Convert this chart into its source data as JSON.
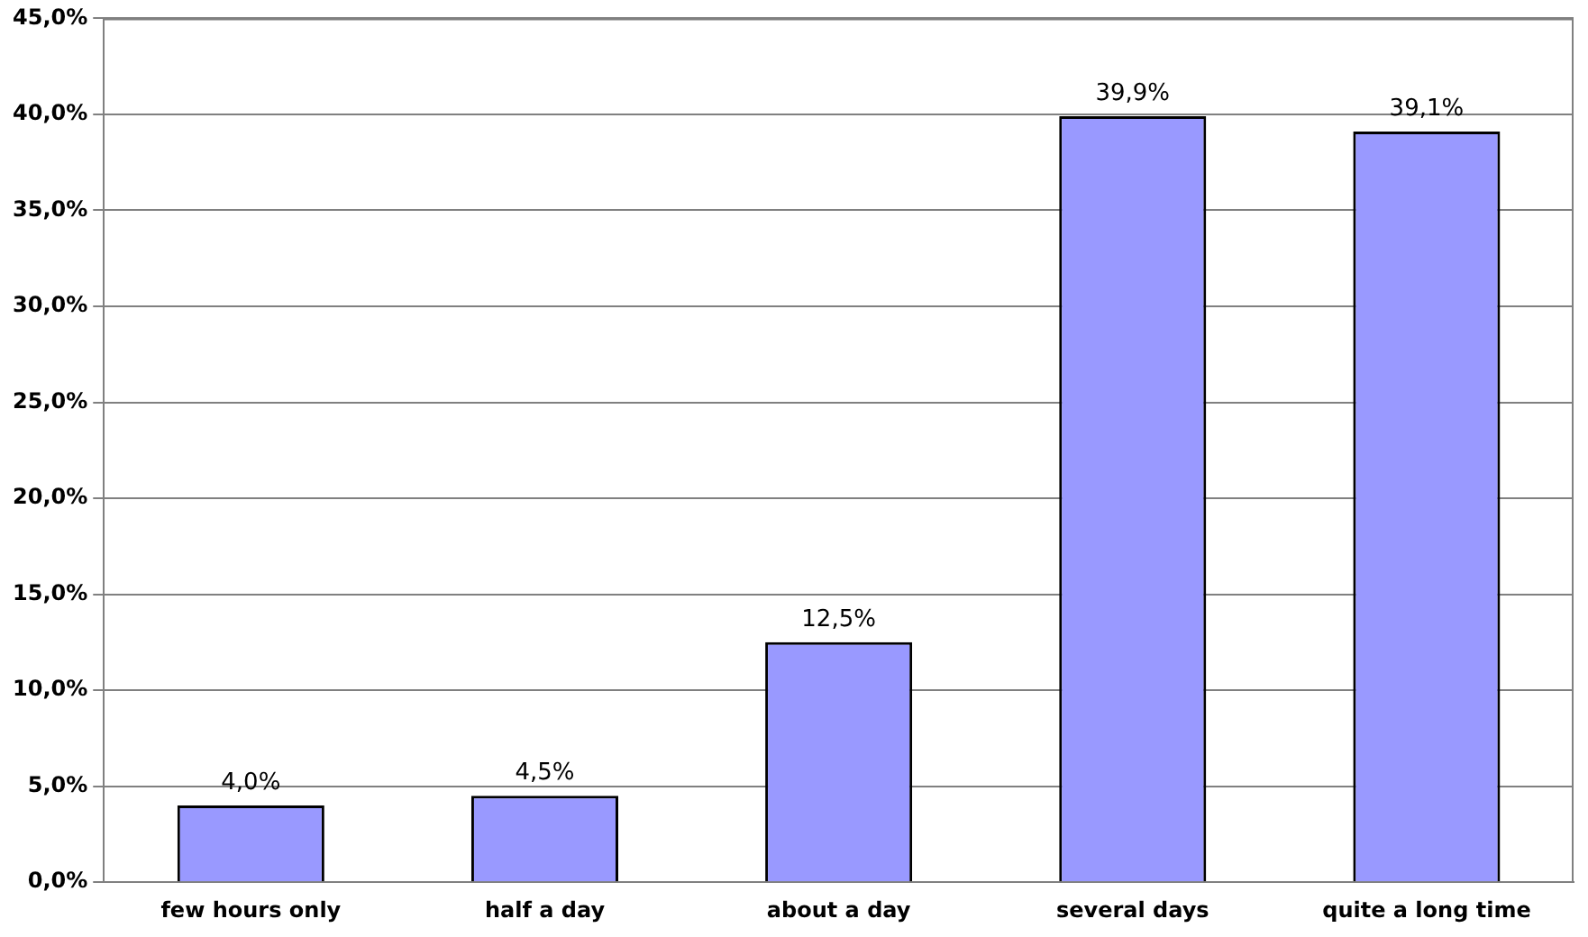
{
  "chart_data": {
    "type": "bar",
    "categories": [
      "few hours only",
      "half a day",
      "about a day",
      "several days",
      "quite a long time"
    ],
    "values": [
      4.0,
      4.5,
      12.5,
      39.9,
      39.1
    ],
    "color": "#9999ff",
    "value_labels": [
      "4,0%",
      "4,5%",
      "12,5%",
      "39,9%",
      "39,1%"
    ],
    "ylim": [
      0,
      45
    ],
    "yticks": [
      {
        "value": 0,
        "label": "0,0%"
      },
      {
        "value": 5,
        "label": "5,0%"
      },
      {
        "value": 10,
        "label": "10,0%"
      },
      {
        "value": 15,
        "label": "15,0%"
      },
      {
        "value": 20,
        "label": "20,0%"
      },
      {
        "value": 25,
        "label": "25,0%"
      },
      {
        "value": 30,
        "label": "30,0%"
      },
      {
        "value": 35,
        "label": "35,0%"
      },
      {
        "value": 40,
        "label": "40,0%"
      },
      {
        "value": 45,
        "label": "45,0%"
      }
    ],
    "grid": "y",
    "legend": false
  }
}
